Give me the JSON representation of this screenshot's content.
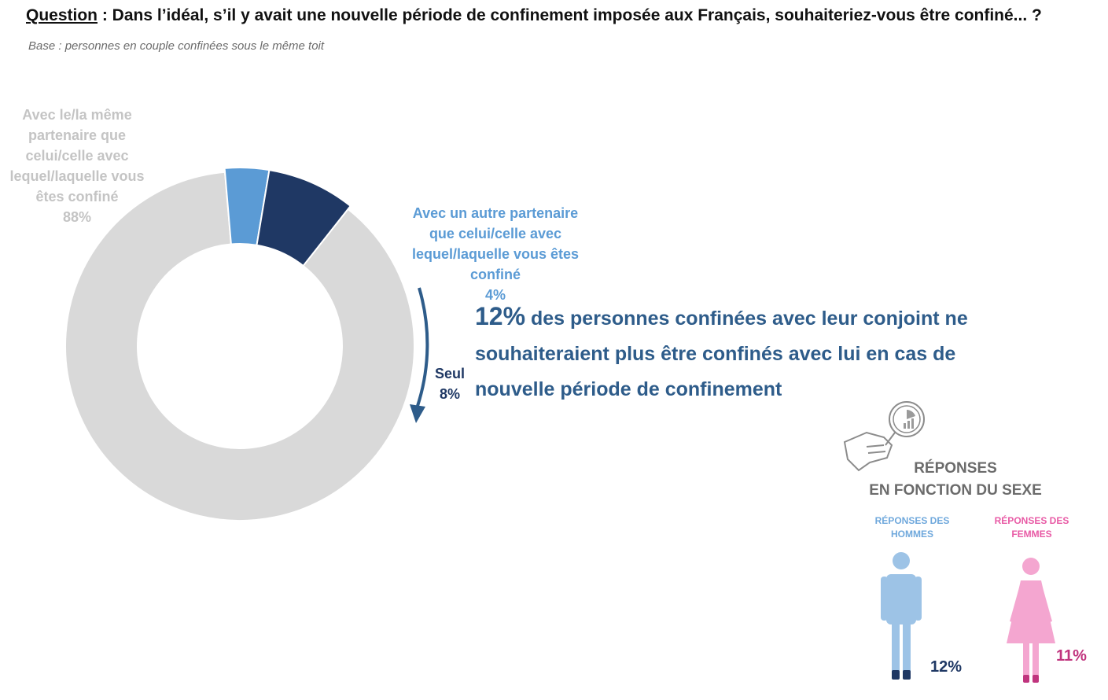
{
  "question": {
    "label": "Question",
    "text": " : Dans l’idéal, s’il y avait une nouvelle période de confinement imposée aux Français, souhaiteriez-vous être confiné...  ?"
  },
  "base": "Base : personnes en couple confinées sous le même toit",
  "chart_data": {
    "type": "pie",
    "variant": "donut",
    "slices": [
      {
        "label": "Avec le/la même partenaire que celui/celle avec lequel/laquelle vous êtes confiné",
        "value": 88,
        "value_label": "88%",
        "color": "#d9d9d9"
      },
      {
        "label": "Avec un autre partenaire que celui/celle avec lequel/laquelle vous êtes confiné",
        "value": 4,
        "value_label": "4%",
        "color": "#5b9bd5"
      },
      {
        "label": "Seul",
        "value": 8,
        "value_label": "8%",
        "color": "#1f3864"
      }
    ]
  },
  "headline": {
    "big": "12%",
    "rest": " des personnes confinées avec leur conjoint ne souhaiteraient plus être confinés avec lui en cas de nouvelle période de confinement"
  },
  "sex_breakdown": {
    "title_line1": "RÉPONSES",
    "title_line2": "EN FONCTION DU SEXE",
    "men": {
      "label": "RÉPONSES DES HOMMES",
      "value": 12,
      "value_label": "12%",
      "color": "#9dc3e6",
      "feet_color": "#1f3864"
    },
    "women": {
      "label": "RÉPONSES DES FEMMES",
      "value": 11,
      "value_label": "11%",
      "color": "#f4a6d0",
      "feet_color": "#c0347e"
    }
  },
  "icons": {
    "magnifier": "hand-magnifier-chart-icon",
    "man": "man-figure-icon",
    "woman": "woman-figure-icon"
  }
}
